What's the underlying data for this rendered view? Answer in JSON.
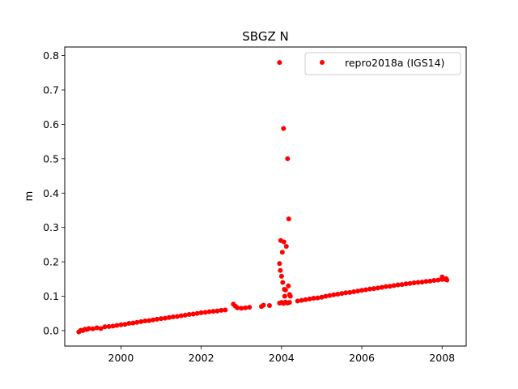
{
  "chart_data": {
    "type": "scatter",
    "title": "SBGZ N",
    "xlabel": "",
    "ylabel": "m",
    "xlim": [
      1998.6,
      2008.6
    ],
    "ylim": [
      -0.045,
      0.825
    ],
    "xticks": [
      2000,
      2002,
      2004,
      2006,
      2008
    ],
    "yticks": [
      0.0,
      0.1,
      0.2,
      0.3,
      0.4,
      0.5,
      0.6,
      0.7,
      0.8
    ],
    "xtick_labels": [
      "2000",
      "2002",
      "2004",
      "2006",
      "2008"
    ],
    "ytick_labels": [
      "0.0",
      "0.1",
      "0.2",
      "0.3",
      "0.4",
      "0.5",
      "0.6",
      "0.7",
      "0.8"
    ],
    "grid": false,
    "legend": {
      "position": "upper right",
      "entries": [
        "repro2018a (IGS14)"
      ]
    },
    "series": [
      {
        "name": "repro2018a (IGS14)",
        "color": "#ff0000",
        "marker": "circle",
        "points": [
          [
            1998.95,
            -0.004
          ],
          [
            1999.0,
            0.001
          ],
          [
            1999.05,
            0.0
          ],
          [
            1999.1,
            0.004
          ],
          [
            1999.15,
            0.003
          ],
          [
            1999.2,
            0.006
          ],
          [
            1999.3,
            0.005
          ],
          [
            1999.4,
            0.008
          ],
          [
            1999.5,
            0.006
          ],
          [
            1999.6,
            0.011
          ],
          [
            1999.7,
            0.012
          ],
          [
            1999.8,
            0.013
          ],
          [
            1999.9,
            0.015
          ],
          [
            2000.0,
            0.017
          ],
          [
            2000.1,
            0.018
          ],
          [
            2000.2,
            0.021
          ],
          [
            2000.3,
            0.022
          ],
          [
            2000.4,
            0.024
          ],
          [
            2000.5,
            0.026
          ],
          [
            2000.6,
            0.028
          ],
          [
            2000.7,
            0.029
          ],
          [
            2000.8,
            0.031
          ],
          [
            2000.9,
            0.033
          ],
          [
            2001.0,
            0.035
          ],
          [
            2001.1,
            0.036
          ],
          [
            2001.2,
            0.038
          ],
          [
            2001.3,
            0.04
          ],
          [
            2001.4,
            0.041
          ],
          [
            2001.5,
            0.043
          ],
          [
            2001.6,
            0.045
          ],
          [
            2001.7,
            0.047
          ],
          [
            2001.8,
            0.048
          ],
          [
            2001.9,
            0.05
          ],
          [
            2002.0,
            0.052
          ],
          [
            2002.1,
            0.053
          ],
          [
            2002.2,
            0.055
          ],
          [
            2002.3,
            0.056
          ],
          [
            2002.4,
            0.057
          ],
          [
            2002.5,
            0.059
          ],
          [
            2002.6,
            0.06
          ],
          [
            2002.8,
            0.077
          ],
          [
            2002.85,
            0.071
          ],
          [
            2002.9,
            0.066
          ],
          [
            2003.0,
            0.065
          ],
          [
            2003.1,
            0.066
          ],
          [
            2003.2,
            0.068
          ],
          [
            2003.5,
            0.07
          ],
          [
            2003.55,
            0.074
          ],
          [
            2003.7,
            0.073
          ],
          [
            2003.95,
            0.78
          ],
          [
            2003.95,
            0.195
          ],
          [
            2003.97,
            0.175
          ],
          [
            2003.98,
            0.262
          ],
          [
            2004.0,
            0.158
          ],
          [
            2004.02,
            0.228
          ],
          [
            2004.03,
            0.14
          ],
          [
            2004.05,
            0.588
          ],
          [
            2004.06,
            0.258
          ],
          [
            2004.07,
            0.12
          ],
          [
            2004.08,
            0.1
          ],
          [
            2004.1,
            0.118
          ],
          [
            2004.12,
            0.245
          ],
          [
            2004.15,
            0.5
          ],
          [
            2004.17,
            0.13
          ],
          [
            2004.18,
            0.325
          ],
          [
            2004.2,
            0.105
          ],
          [
            2004.22,
            0.1
          ],
          [
            2003.95,
            0.08
          ],
          [
            2004.0,
            0.082
          ],
          [
            2004.05,
            0.079
          ],
          [
            2004.1,
            0.083
          ],
          [
            2004.15,
            0.08
          ],
          [
            2004.2,
            0.082
          ],
          [
            2004.4,
            0.086
          ],
          [
            2004.5,
            0.088
          ],
          [
            2004.6,
            0.09
          ],
          [
            2004.7,
            0.092
          ],
          [
            2004.8,
            0.094
          ],
          [
            2004.9,
            0.095
          ],
          [
            2005.0,
            0.097
          ],
          [
            2005.1,
            0.1
          ],
          [
            2005.2,
            0.102
          ],
          [
            2005.3,
            0.104
          ],
          [
            2005.4,
            0.106
          ],
          [
            2005.5,
            0.108
          ],
          [
            2005.6,
            0.11
          ],
          [
            2005.7,
            0.111
          ],
          [
            2005.8,
            0.113
          ],
          [
            2005.9,
            0.115
          ],
          [
            2006.0,
            0.117
          ],
          [
            2006.1,
            0.119
          ],
          [
            2006.2,
            0.121
          ],
          [
            2006.3,
            0.122
          ],
          [
            2006.4,
            0.124
          ],
          [
            2006.5,
            0.126
          ],
          [
            2006.6,
            0.128
          ],
          [
            2006.7,
            0.129
          ],
          [
            2006.8,
            0.131
          ],
          [
            2006.9,
            0.133
          ],
          [
            2007.0,
            0.134
          ],
          [
            2007.1,
            0.136
          ],
          [
            2007.2,
            0.137
          ],
          [
            2007.3,
            0.139
          ],
          [
            2007.4,
            0.14
          ],
          [
            2007.5,
            0.141
          ],
          [
            2007.6,
            0.143
          ],
          [
            2007.7,
            0.144
          ],
          [
            2007.8,
            0.146
          ],
          [
            2007.9,
            0.147
          ],
          [
            2008.0,
            0.149
          ],
          [
            2008.0,
            0.156
          ],
          [
            2008.05,
            0.15
          ],
          [
            2008.1,
            0.151
          ],
          [
            2008.12,
            0.147
          ]
        ]
      }
    ]
  }
}
